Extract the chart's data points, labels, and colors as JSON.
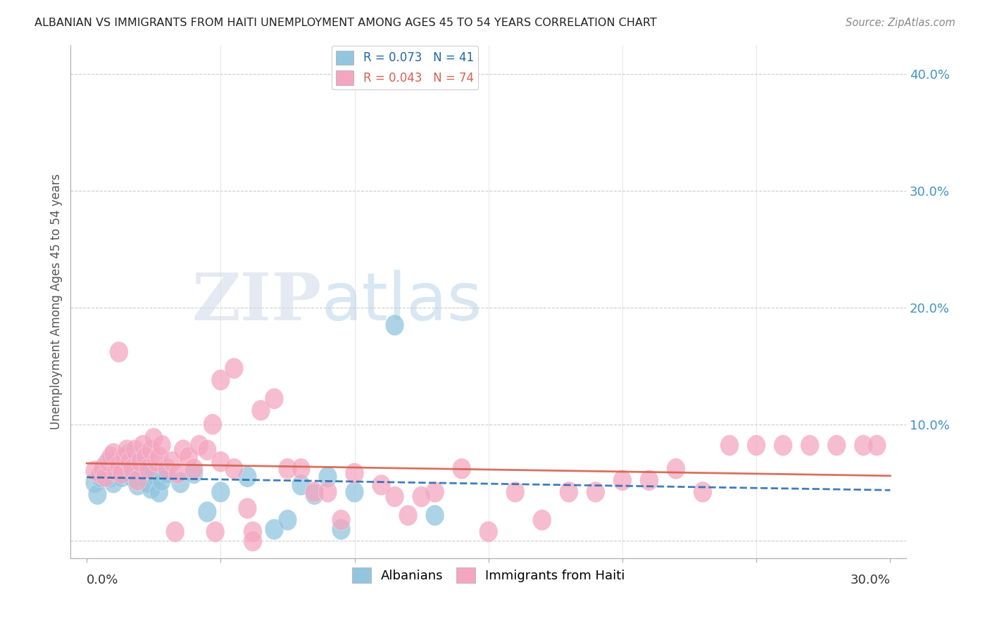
{
  "title": "ALBANIAN VS IMMIGRANTS FROM HAITI UNEMPLOYMENT AMONG AGES 45 TO 54 YEARS CORRELATION CHART",
  "source": "Source: ZipAtlas.com",
  "ylabel": "Unemployment Among Ages 45 to 54 years",
  "legend_albanian": "Albanians",
  "legend_haiti": "Immigrants from Haiti",
  "R_albanian": 0.073,
  "N_albanian": 41,
  "R_haiti": 0.043,
  "N_haiti": 74,
  "color_albanian": "#92c5de",
  "color_haiti": "#f4a6c0",
  "color_albanian_line": "#2166ac",
  "color_haiti_line": "#d6604d",
  "watermark_zip": "ZIP",
  "watermark_atlas": "atlas",
  "xlim": [
    0.0,
    0.3
  ],
  "ylim": [
    0.0,
    0.42
  ],
  "yticks": [
    0.0,
    0.1,
    0.2,
    0.3,
    0.4
  ],
  "ytick_labels": [
    "",
    "10.0%",
    "20.0%",
    "30.0%",
    "40.0%"
  ],
  "alb_x": [
    0.003,
    0.004,
    0.005,
    0.006,
    0.007,
    0.008,
    0.009,
    0.01,
    0.011,
    0.012,
    0.013,
    0.014,
    0.015,
    0.016,
    0.017,
    0.018,
    0.019,
    0.02,
    0.021,
    0.022,
    0.023,
    0.024,
    0.025,
    0.026,
    0.027,
    0.028,
    0.03,
    0.035,
    0.04,
    0.045,
    0.05,
    0.06,
    0.07,
    0.075,
    0.08,
    0.085,
    0.09,
    0.095,
    0.1,
    0.115,
    0.13
  ],
  "alb_y": [
    0.05,
    0.04,
    0.055,
    0.06,
    0.065,
    0.06,
    0.055,
    0.05,
    0.065,
    0.06,
    0.055,
    0.07,
    0.06,
    0.075,
    0.055,
    0.06,
    0.048,
    0.065,
    0.06,
    0.055,
    0.05,
    0.045,
    0.06,
    0.055,
    0.042,
    0.052,
    0.058,
    0.05,
    0.058,
    0.025,
    0.042,
    0.055,
    0.01,
    0.018,
    0.048,
    0.04,
    0.055,
    0.01,
    0.042,
    0.185,
    0.022
  ],
  "hai_x": [
    0.003,
    0.005,
    0.006,
    0.007,
    0.008,
    0.009,
    0.01,
    0.011,
    0.012,
    0.013,
    0.014,
    0.015,
    0.016,
    0.017,
    0.018,
    0.019,
    0.02,
    0.021,
    0.022,
    0.023,
    0.024,
    0.025,
    0.026,
    0.027,
    0.028,
    0.03,
    0.032,
    0.034,
    0.036,
    0.038,
    0.04,
    0.042,
    0.045,
    0.05,
    0.055,
    0.06,
    0.065,
    0.07,
    0.075,
    0.08,
    0.085,
    0.09,
    0.095,
    0.1,
    0.11,
    0.12,
    0.13,
    0.14,
    0.15,
    0.16,
    0.17,
    0.18,
    0.19,
    0.2,
    0.21,
    0.22,
    0.23,
    0.24,
    0.25,
    0.26,
    0.27,
    0.28,
    0.29,
    0.295,
    0.012,
    0.033,
    0.048,
    0.062,
    0.115,
    0.125,
    0.047,
    0.05,
    0.055,
    0.062
  ],
  "hai_y": [
    0.06,
    0.058,
    0.062,
    0.055,
    0.068,
    0.072,
    0.075,
    0.06,
    0.065,
    0.058,
    0.072,
    0.078,
    0.068,
    0.062,
    0.078,
    0.052,
    0.068,
    0.082,
    0.072,
    0.062,
    0.078,
    0.088,
    0.068,
    0.072,
    0.082,
    0.062,
    0.068,
    0.058,
    0.078,
    0.072,
    0.062,
    0.082,
    0.078,
    0.068,
    0.062,
    0.028,
    0.112,
    0.122,
    0.062,
    0.062,
    0.042,
    0.042,
    0.018,
    0.058,
    0.048,
    0.022,
    0.042,
    0.062,
    0.008,
    0.042,
    0.018,
    0.042,
    0.042,
    0.052,
    0.052,
    0.062,
    0.042,
    0.082,
    0.082,
    0.082,
    0.082,
    0.082,
    0.082,
    0.082,
    0.162,
    0.008,
    0.008,
    0.008,
    0.038,
    0.038,
    0.1,
    0.138,
    0.148,
    0.0
  ]
}
